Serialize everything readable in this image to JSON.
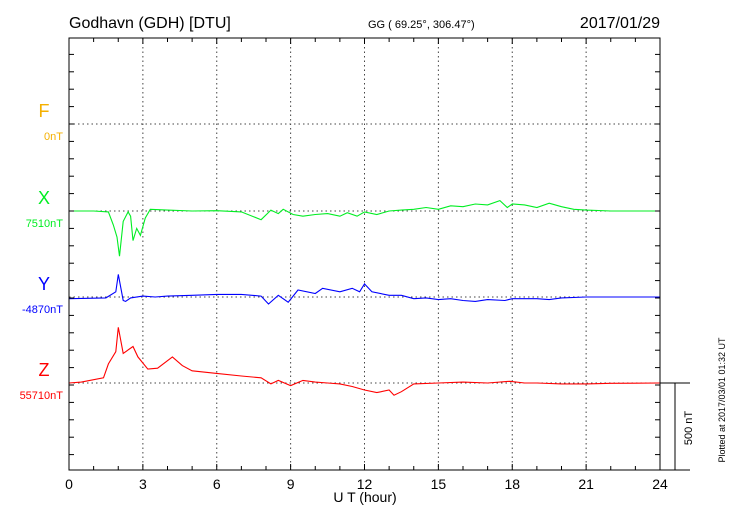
{
  "header": {
    "station": "Godhavn (GDH)  [DTU]",
    "coords": "GG ( 69.25°, 306.47°)",
    "date": "2017/01/29"
  },
  "footer": {
    "plotted": "Plotted at 2017/03/01 01:32 UT",
    "scale_label": "500 nT"
  },
  "chart_data": {
    "type": "line",
    "xlabel": "U T (hour)",
    "xlim": [
      0,
      24
    ],
    "xticks": [
      "0",
      "3",
      "6",
      "9",
      "12",
      "15",
      "18",
      "21",
      "24"
    ],
    "scale_bar_nT": 500,
    "grid": true,
    "series": [
      {
        "name": "F",
        "baseline_label": "0nT",
        "color": "#f5b000",
        "points": []
      },
      {
        "name": "X",
        "baseline_label": "7510nT",
        "color": "#00ee22",
        "points": [
          [
            0,
            0
          ],
          [
            1,
            0
          ],
          [
            1.6,
            -5
          ],
          [
            1.8,
            -80
          ],
          [
            1.95,
            -150
          ],
          [
            2.05,
            -260
          ],
          [
            2.2,
            -60
          ],
          [
            2.4,
            -5
          ],
          [
            2.5,
            -30
          ],
          [
            2.6,
            -170
          ],
          [
            2.75,
            -100
          ],
          [
            2.9,
            -140
          ],
          [
            3.1,
            -40
          ],
          [
            3.3,
            10
          ],
          [
            4,
            5
          ],
          [
            5,
            0
          ],
          [
            6,
            2
          ],
          [
            7,
            -5
          ],
          [
            7.8,
            -50
          ],
          [
            8.2,
            5
          ],
          [
            8.5,
            -15
          ],
          [
            8.7,
            10
          ],
          [
            9.1,
            -20
          ],
          [
            9.5,
            -30
          ],
          [
            10,
            -20
          ],
          [
            10.5,
            -15
          ],
          [
            11,
            -30
          ],
          [
            11.3,
            -10
          ],
          [
            11.7,
            -30
          ],
          [
            12,
            -5
          ],
          [
            12.5,
            -20
          ],
          [
            13,
            0
          ],
          [
            13.5,
            5
          ],
          [
            14,
            10
          ],
          [
            14.5,
            20
          ],
          [
            15,
            10
          ],
          [
            15.5,
            30
          ],
          [
            16,
            25
          ],
          [
            16.5,
            40
          ],
          [
            17,
            35
          ],
          [
            17.5,
            60
          ],
          [
            17.8,
            20
          ],
          [
            18,
            40
          ],
          [
            18.5,
            35
          ],
          [
            19,
            20
          ],
          [
            19.5,
            45
          ],
          [
            20,
            25
          ],
          [
            20.5,
            10
          ],
          [
            21,
            5
          ],
          [
            22,
            0
          ],
          [
            23,
            0
          ],
          [
            24,
            0
          ]
        ]
      },
      {
        "name": "Y",
        "baseline_label": "-4870nT",
        "color": "#0000ff",
        "points": [
          [
            0,
            -10
          ],
          [
            1.5,
            -5
          ],
          [
            1.9,
            30
          ],
          [
            2.0,
            130
          ],
          [
            2.2,
            -20
          ],
          [
            2.3,
            -25
          ],
          [
            2.5,
            -5
          ],
          [
            3,
            5
          ],
          [
            3.5,
            0
          ],
          [
            4,
            5
          ],
          [
            5,
            10
          ],
          [
            6,
            15
          ],
          [
            7,
            15
          ],
          [
            7.8,
            5
          ],
          [
            8.1,
            -40
          ],
          [
            8.5,
            10
          ],
          [
            8.9,
            -30
          ],
          [
            9.3,
            40
          ],
          [
            10,
            20
          ],
          [
            10.3,
            50
          ],
          [
            11,
            30
          ],
          [
            11.5,
            50
          ],
          [
            11.8,
            30
          ],
          [
            12,
            75
          ],
          [
            12.3,
            30
          ],
          [
            13,
            10
          ],
          [
            13.5,
            10
          ],
          [
            14,
            -10
          ],
          [
            14.5,
            -5
          ],
          [
            15,
            -15
          ],
          [
            15.5,
            -10
          ],
          [
            16,
            -20
          ],
          [
            16.5,
            -25
          ],
          [
            17,
            -15
          ],
          [
            17.7,
            -20
          ],
          [
            18,
            -10
          ],
          [
            19,
            -10
          ],
          [
            19.5,
            -15
          ],
          [
            20,
            -5
          ],
          [
            21,
            0
          ],
          [
            22,
            0
          ],
          [
            24,
            0
          ]
        ]
      },
      {
        "name": "Z",
        "baseline_label": "55710nT",
        "color": "#ff0000",
        "points": [
          [
            0,
            0
          ],
          [
            0.5,
            5
          ],
          [
            1.4,
            30
          ],
          [
            1.6,
            110
          ],
          [
            1.9,
            180
          ],
          [
            2.0,
            320
          ],
          [
            2.2,
            170
          ],
          [
            2.6,
            210
          ],
          [
            2.8,
            150
          ],
          [
            3.2,
            80
          ],
          [
            3.6,
            85
          ],
          [
            4.2,
            150
          ],
          [
            4.6,
            100
          ],
          [
            5,
            70
          ],
          [
            6,
            55
          ],
          [
            7,
            40
          ],
          [
            7.8,
            30
          ],
          [
            8.2,
            -5
          ],
          [
            8.5,
            15
          ],
          [
            9,
            -15
          ],
          [
            9.5,
            15
          ],
          [
            10,
            5
          ],
          [
            10.5,
            0
          ],
          [
            11,
            -5
          ],
          [
            11.5,
            -20
          ],
          [
            12,
            -40
          ],
          [
            12.5,
            -55
          ],
          [
            13,
            -40
          ],
          [
            13.2,
            -70
          ],
          [
            13.5,
            -50
          ],
          [
            14,
            -5
          ],
          [
            15,
            0
          ],
          [
            16,
            5
          ],
          [
            17,
            0
          ],
          [
            17.9,
            10
          ],
          [
            18.5,
            0
          ],
          [
            19,
            0
          ],
          [
            20,
            -5
          ],
          [
            21,
            -5
          ],
          [
            22,
            -2
          ],
          [
            24,
            0
          ]
        ]
      }
    ]
  }
}
